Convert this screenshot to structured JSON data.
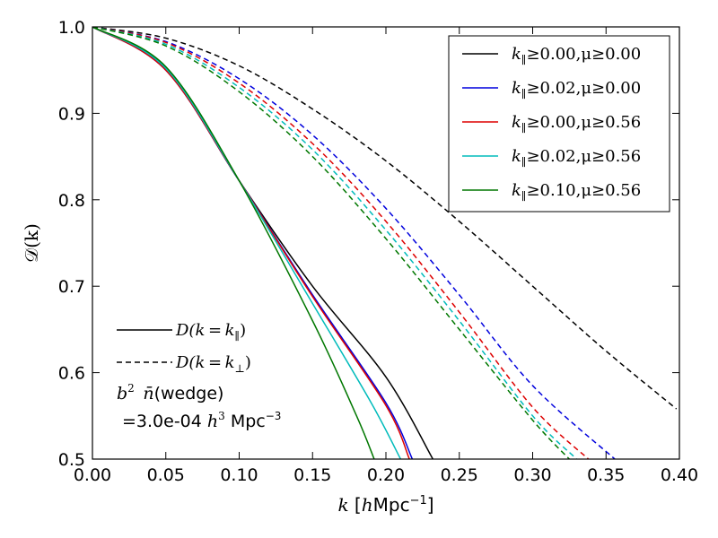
{
  "chart_data": {
    "type": "line",
    "title": "",
    "xlabel": "k [hMpc⁻¹]",
    "xlabel_parts": {
      "k": "k",
      "open": " [",
      "h": "h",
      "unit": "Mpc",
      "exp": "−1",
      "close": "]"
    },
    "ylabel": "𝒟(k)",
    "xlim": [
      0.0,
      0.4
    ],
    "ylim": [
      0.5,
      1.0
    ],
    "xticks": [
      "0.00",
      "0.05",
      "0.10",
      "0.15",
      "0.20",
      "0.25",
      "0.30",
      "0.35",
      "0.40"
    ],
    "yticks": [
      "0.5",
      "0.6",
      "0.7",
      "0.8",
      "0.9",
      "1.0"
    ],
    "grid": false,
    "legend_position": "top-right",
    "series": [
      {
        "name": "k∥≥0.00,μ≥0.00",
        "color": "#000000",
        "solid": [
          [
            0,
            1.0
          ],
          [
            0.05,
            0.952
          ],
          [
            0.1,
            0.822
          ],
          [
            0.15,
            0.7
          ],
          [
            0.2,
            0.595
          ],
          [
            0.232,
            0.5
          ]
        ],
        "dashed": [
          [
            0,
            1.0
          ],
          [
            0.05,
            0.987
          ],
          [
            0.1,
            0.955
          ],
          [
            0.15,
            0.905
          ],
          [
            0.2,
            0.845
          ],
          [
            0.25,
            0.775
          ],
          [
            0.3,
            0.7
          ],
          [
            0.35,
            0.625
          ],
          [
            0.398,
            0.558
          ]
        ]
      },
      {
        "name": "k∥≥0.02,μ≥0.00",
        "color": "#0000dd",
        "solid": [
          [
            0,
            1.0
          ],
          [
            0.05,
            0.95
          ],
          [
            0.1,
            0.822
          ],
          [
            0.15,
            0.69
          ],
          [
            0.2,
            0.565
          ],
          [
            0.218,
            0.5
          ]
        ],
        "dashed": [
          [
            0,
            1.0
          ],
          [
            0.05,
            0.983
          ],
          [
            0.1,
            0.94
          ],
          [
            0.15,
            0.875
          ],
          [
            0.2,
            0.79
          ],
          [
            0.25,
            0.69
          ],
          [
            0.3,
            0.585
          ],
          [
            0.356,
            0.5
          ]
        ]
      },
      {
        "name": "k∥≥0.00,μ≥0.56",
        "color": "#dd0000",
        "solid": [
          [
            0,
            1.0
          ],
          [
            0.05,
            0.95
          ],
          [
            0.1,
            0.822
          ],
          [
            0.15,
            0.688
          ],
          [
            0.2,
            0.562
          ],
          [
            0.216,
            0.5
          ]
        ],
        "dashed": [
          [
            0,
            1.0
          ],
          [
            0.05,
            0.982
          ],
          [
            0.1,
            0.935
          ],
          [
            0.15,
            0.865
          ],
          [
            0.2,
            0.775
          ],
          [
            0.25,
            0.67
          ],
          [
            0.3,
            0.56
          ],
          [
            0.338,
            0.5
          ]
        ]
      },
      {
        "name": "k∥≥0.02,μ≥0.56",
        "color": "#00bbbb",
        "solid": [
          [
            0,
            1.0
          ],
          [
            0.05,
            0.952
          ],
          [
            0.1,
            0.822
          ],
          [
            0.15,
            0.68
          ],
          [
            0.19,
            0.565
          ],
          [
            0.21,
            0.5
          ]
        ],
        "dashed": [
          [
            0,
            1.0
          ],
          [
            0.05,
            0.98
          ],
          [
            0.1,
            0.93
          ],
          [
            0.15,
            0.858
          ],
          [
            0.2,
            0.765
          ],
          [
            0.25,
            0.66
          ],
          [
            0.3,
            0.55
          ],
          [
            0.33,
            0.5
          ]
        ]
      },
      {
        "name": "k∥≥0.10,μ≥0.56",
        "color": "#007700",
        "solid": [
          [
            0,
            1.0
          ],
          [
            0.05,
            0.954
          ],
          [
            0.1,
            0.822
          ],
          [
            0.15,
            0.66
          ],
          [
            0.18,
            0.55
          ],
          [
            0.192,
            0.5
          ]
        ],
        "dashed": [
          [
            0,
            1.0
          ],
          [
            0.05,
            0.978
          ],
          [
            0.1,
            0.925
          ],
          [
            0.15,
            0.85
          ],
          [
            0.2,
            0.755
          ],
          [
            0.25,
            0.65
          ],
          [
            0.3,
            0.545
          ],
          [
            0.325,
            0.5
          ]
        ]
      }
    ],
    "legend_entries": [
      {
        "k": "k",
        "sub": "∥",
        "rest": "≥0.00,μ≥0.00",
        "color": "#000000"
      },
      {
        "k": "k",
        "sub": "∥",
        "rest": "≥0.02,μ≥0.00",
        "color": "#0000dd"
      },
      {
        "k": "k",
        "sub": "∥",
        "rest": "≥0.00,μ≥0.56",
        "color": "#dd0000"
      },
      {
        "k": "k",
        "sub": "∥",
        "rest": "≥0.02,μ≥0.56",
        "color": "#00bbbb"
      },
      {
        "k": "k",
        "sub": "∥",
        "rest": "≥0.10,μ≥0.56",
        "color": "#007700"
      }
    ],
    "style_legend": [
      {
        "linestyle": "solid",
        "label_pre": "D(k = k",
        "label_sub": "∥",
        "label_post": ")"
      },
      {
        "linestyle": "dashed",
        "label_pre": "D(k = k",
        "label_sub": "⊥",
        "label_post": ")"
      }
    ],
    "annotation": {
      "line1_b": "b",
      "line1_sup": "2",
      "line1_nbar": "n̄",
      "line1_text": "(wedge)",
      "line2_value": "=3.0e-04",
      "line2_h": "h",
      "line2_h_sup": "3",
      "line2_unit": "Mpc",
      "line2_unit_sup": "−3"
    }
  }
}
